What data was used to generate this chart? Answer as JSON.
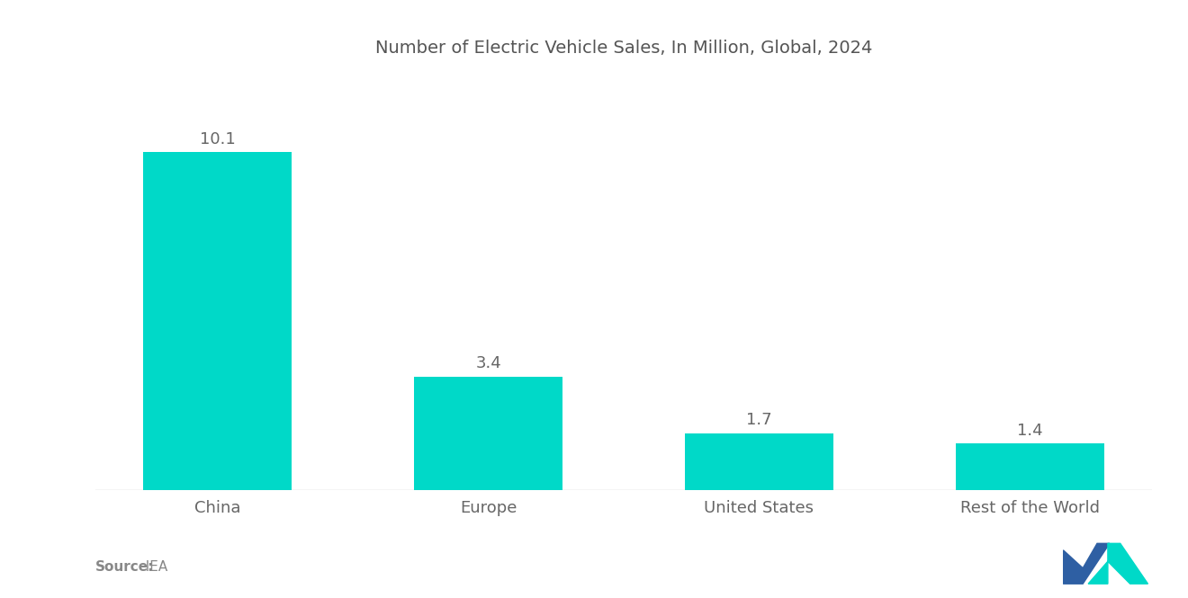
{
  "title": "Number of Electric Vehicle Sales, In Million, Global, 2024",
  "categories": [
    "China",
    "Europe",
    "United States",
    "Rest of the World"
  ],
  "values": [
    10.1,
    3.4,
    1.7,
    1.4
  ],
  "bar_color": "#00D9C8",
  "label_color": "#666666",
  "title_color": "#555555",
  "source_label": "Source:",
  "source_value": "  IEA",
  "source_color": "#888888",
  "background_color": "#ffffff",
  "ylim": [
    0,
    12.5
  ],
  "bar_width": 0.55,
  "value_fontsize": 13,
  "category_fontsize": 13,
  "title_fontsize": 14,
  "logo_dark": "#2E5FA3",
  "logo_teal": "#00D9C8"
}
